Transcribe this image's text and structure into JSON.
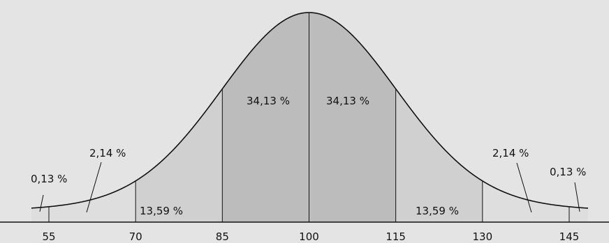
{
  "chart_data": {
    "type": "area",
    "x_ticks": [
      55,
      70,
      85,
      100,
      115,
      130,
      145
    ],
    "xlim": [
      55,
      145
    ],
    "mean": 100,
    "sd": 15,
    "bands": [
      {
        "from": 55,
        "to": 70,
        "percent": 2.14
      },
      {
        "from": 70,
        "to": 85,
        "percent": 13.59
      },
      {
        "from": 85,
        "to": 100,
        "percent": 34.13
      },
      {
        "from": 100,
        "to": 115,
        "percent": 34.13
      },
      {
        "from": 115,
        "to": 130,
        "percent": 13.59
      },
      {
        "from": 130,
        "to": 145,
        "percent": 2.14
      }
    ],
    "tails": [
      {
        "side": "left",
        "percent": 0.13
      },
      {
        "side": "right",
        "percent": 0.13
      }
    ],
    "labels": {
      "tail_left": "0,13 %",
      "band_1": "2,14 %",
      "band_2": "13,59 %",
      "band_3": "34,13 %",
      "band_4": "34,13 %",
      "band_5": "13,59 %",
      "band_6": "2,14 %",
      "tail_right": "0,13 %"
    },
    "tick_labels": [
      "55",
      "70",
      "85",
      "100",
      "115",
      "130",
      "145"
    ],
    "colors": {
      "background": "#e4e4e4",
      "outer_band": "#dedede",
      "middle_band": "#d0d0d0",
      "center_band": "#bcbcbc",
      "line": "#111111"
    }
  }
}
